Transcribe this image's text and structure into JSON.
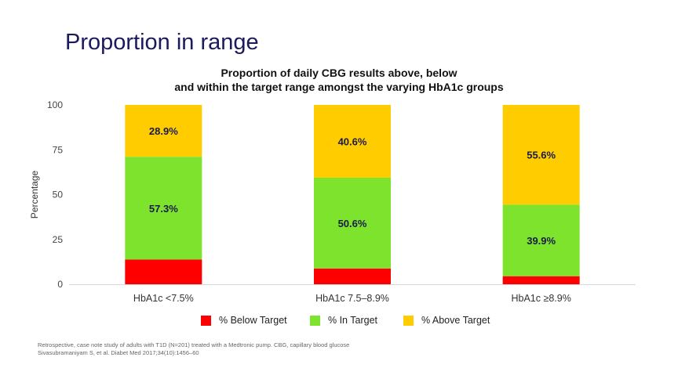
{
  "slide": {
    "title": "Proportion in range",
    "logo_icon": "waveform-logo-icon",
    "title_color": "#1a1a5e"
  },
  "chart_data": {
    "type": "bar",
    "stacked": true,
    "title_line1": "Proportion of daily CBG results above, below",
    "title_line2": "and within the target range amongst the varying HbA1c groups",
    "xlabel": "",
    "ylabel": "Percentage",
    "ylim": [
      0,
      100
    ],
    "yticks": [
      0,
      25,
      50,
      75,
      100
    ],
    "grid": false,
    "legend_position": "bottom",
    "categories": [
      "HbA1c <7.5%",
      "HbA1c 7.5–8.9%",
      "HbA1c ≥8.9%"
    ],
    "series": [
      {
        "name": "% Below Target",
        "color": "#ff0000",
        "values": [
          13.8,
          8.8,
          4.5
        ],
        "labels": [
          "",
          "",
          ""
        ]
      },
      {
        "name": "% In Target",
        "color": "#7ee32c",
        "values": [
          57.3,
          50.6,
          39.9
        ],
        "labels": [
          "57.3%",
          "50.6%",
          "39.9%"
        ]
      },
      {
        "name": "% Above Target",
        "color": "#ffcc00",
        "values": [
          28.9,
          40.6,
          55.6
        ],
        "labels": [
          "28.9%",
          "40.6%",
          "55.6%"
        ]
      }
    ]
  },
  "footnote": {
    "line1": "Retrospective, case note study of adults with T1D (N=201) treated with a Medtronic pump. CBG, capillary blood glucose",
    "line2": "Sivasubramaniyam S, et al. Diabet Med 2017;34(10):1456–60"
  }
}
